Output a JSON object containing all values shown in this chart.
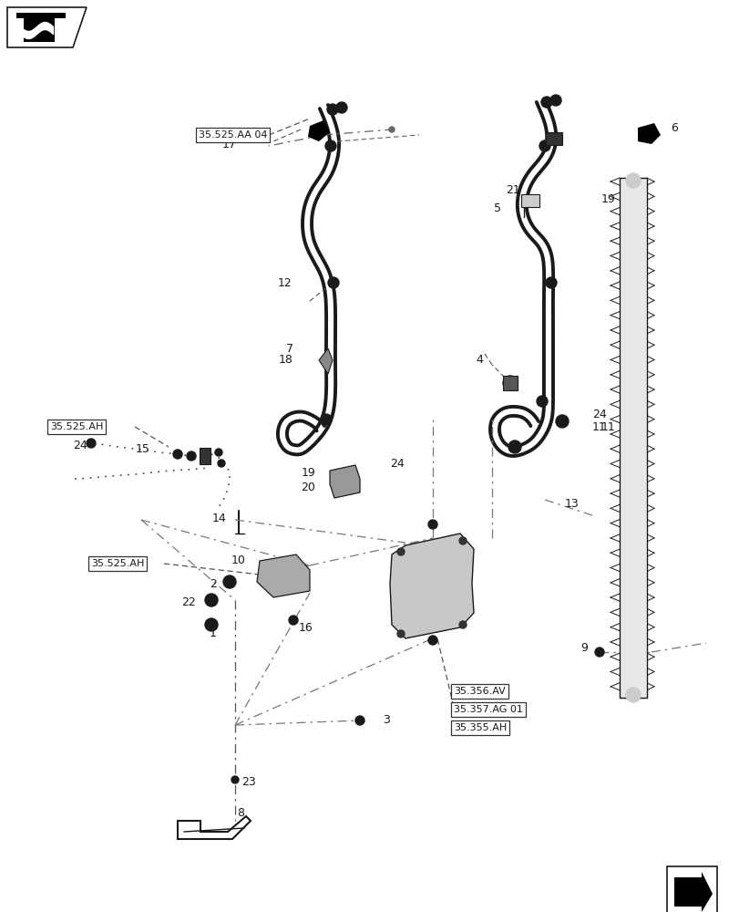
{
  "bg_color": "#ffffff",
  "lc": "#1a1a1a",
  "fig_width": 8.12,
  "fig_height": 10.0,
  "ref_box_top": "35.525.AA 04",
  "ref_box_mid1": "35.525.AH",
  "ref_box_mid2": "35.525.AH",
  "ref_box_bot1": "35.356.AV",
  "ref_box_bot2": "35.357.AG 01",
  "ref_box_bot3": "35.355.AH"
}
